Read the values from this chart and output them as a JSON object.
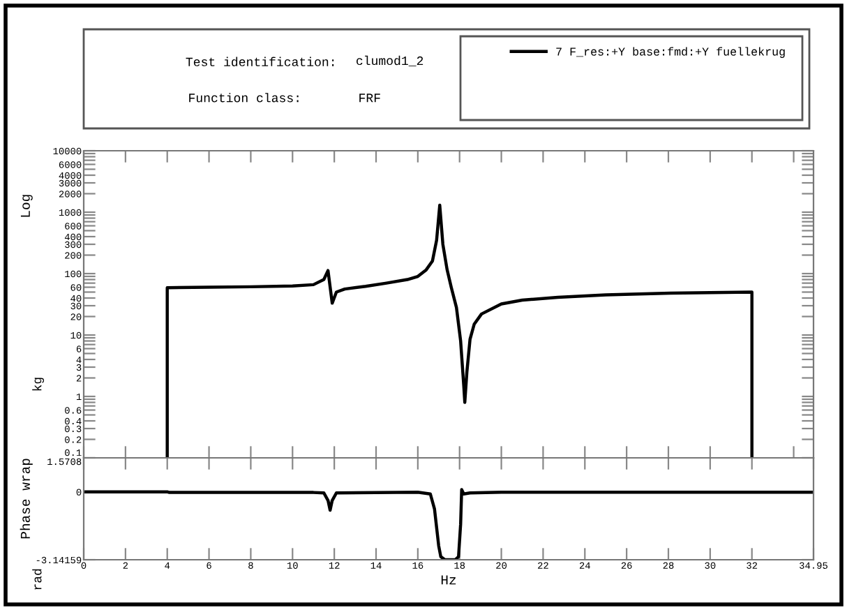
{
  "chart_data": [
    {
      "type": "line",
      "ylabel": "Log",
      "annotations": [
        "kg",
        "Test identification:",
        "clumod1_2",
        "Function class:",
        "FRF"
      ],
      "legend": "top right",
      "log": "y",
      "tick_labels": "y",
      "grid": false,
      "xlim": [
        0,
        34.95
      ],
      "ylim": [
        0.1,
        10000
      ],
      "xticks": [
        {
          "value": 0,
          "label": null
        },
        {
          "value": 2,
          "label": null
        },
        {
          "value": 4,
          "label": null
        },
        {
          "value": 6,
          "label": null
        },
        {
          "value": 8,
          "label": null
        },
        {
          "value": 10,
          "label": null
        },
        {
          "value": 12,
          "label": null
        },
        {
          "value": 14,
          "label": null
        },
        {
          "value": 16,
          "label": null
        },
        {
          "value": 18,
          "label": null
        },
        {
          "value": 20,
          "label": null
        },
        {
          "value": 22,
          "label": null
        },
        {
          "value": 24,
          "label": null
        },
        {
          "value": 26,
          "label": null
        },
        {
          "value": 28,
          "label": null
        },
        {
          "value": 30,
          "label": null
        },
        {
          "value": 32,
          "label": null
        },
        {
          "value": 34,
          "label": null
        }
      ],
      "yticks": [
        0.1,
        0.2,
        0.3,
        0.4,
        {
          "value": 0.5,
          "label": null
        },
        0.6,
        {
          "value": 0.7,
          "label": null
        },
        {
          "value": 0.8,
          "label": null
        },
        {
          "value": 0.9,
          "label": null
        },
        1,
        2,
        3,
        4,
        {
          "value": 5,
          "label": null
        },
        6,
        {
          "value": 7,
          "label": null
        },
        {
          "value": 8,
          "label": null
        },
        {
          "value": 9,
          "label": null
        },
        10,
        20,
        30,
        40,
        {
          "value": 50,
          "label": null
        },
        60,
        {
          "value": 70,
          "label": null
        },
        {
          "value": 80,
          "label": null
        },
        {
          "value": 90,
          "label": null
        },
        100,
        200,
        300,
        400,
        {
          "value": 500,
          "label": null
        },
        600,
        {
          "value": 700,
          "label": null
        },
        {
          "value": 800,
          "label": null
        },
        {
          "value": 900,
          "label": null
        },
        1000,
        2000,
        3000,
        4000,
        {
          "value": 5000,
          "label": null
        },
        6000,
        {
          "value": 7000,
          "label": null
        },
        {
          "value": 8000,
          "label": null
        },
        {
          "value": 9000,
          "label": null
        },
        10000
      ],
      "series": [
        {
          "name": "7 F_res:+Y base:fmd:+Y fuellekrug",
          "color": "#000000",
          "x": [
            4,
            4,
            6,
            8,
            10,
            11,
            11.5,
            11.7,
            11.9,
            12.1,
            12.5,
            13.5,
            14.5,
            15.5,
            16.0,
            16.4,
            16.7,
            16.9,
            17.05,
            17.2,
            17.4,
            17.6,
            17.85,
            18.05,
            18.2,
            18.25,
            18.35,
            18.5,
            18.7,
            19.05,
            20,
            21,
            22.7,
            25,
            28.1,
            30,
            32,
            32
          ],
          "values": [
            0.1,
            59,
            60,
            61,
            63,
            66,
            80,
            112,
            33,
            50,
            56,
            62,
            70,
            80,
            90,
            115,
            160,
            350,
            1300,
            300,
            117,
            60,
            28,
            8,
            1.5,
            0.8,
            2.5,
            8.5,
            15,
            22,
            32,
            37,
            41,
            45,
            48,
            49,
            50,
            0.1
          ]
        }
      ]
    },
    {
      "type": "line",
      "ylabel": "Phase wrap",
      "xlabel": "Hz",
      "annotations": [
        "rad"
      ],
      "grid": false,
      "xlim": [
        0,
        34.95
      ],
      "ylim": [
        -3.14159,
        1.5708
      ],
      "xticks": [
        0,
        2,
        4,
        6,
        8,
        10,
        12,
        14,
        16,
        18,
        20,
        22,
        24,
        26,
        28,
        30,
        32,
        34.95
      ],
      "yticks": [
        -3.14159,
        0,
        1.5708
      ],
      "series": [
        {
          "color": "#000000",
          "x": [
            0,
            4,
            4.1,
            11,
            11.5,
            11.7,
            11.8,
            11.9,
            12.1,
            16,
            16.6,
            16.8,
            17.0,
            17.1,
            17.3,
            17.8,
            17.95,
            18.05,
            18.1,
            18.2,
            18.5,
            20,
            34.95
          ],
          "values": [
            0,
            0,
            -0.03,
            -0.03,
            -0.05,
            -0.4,
            -0.85,
            -0.4,
            -0.05,
            -0.02,
            -0.1,
            -0.8,
            -2.5,
            -3.0,
            -3.14,
            -3.14,
            -3.0,
            -1.5,
            0.1,
            -0.1,
            -0.05,
            -0.02,
            -0.02
          ]
        }
      ]
    }
  ]
}
